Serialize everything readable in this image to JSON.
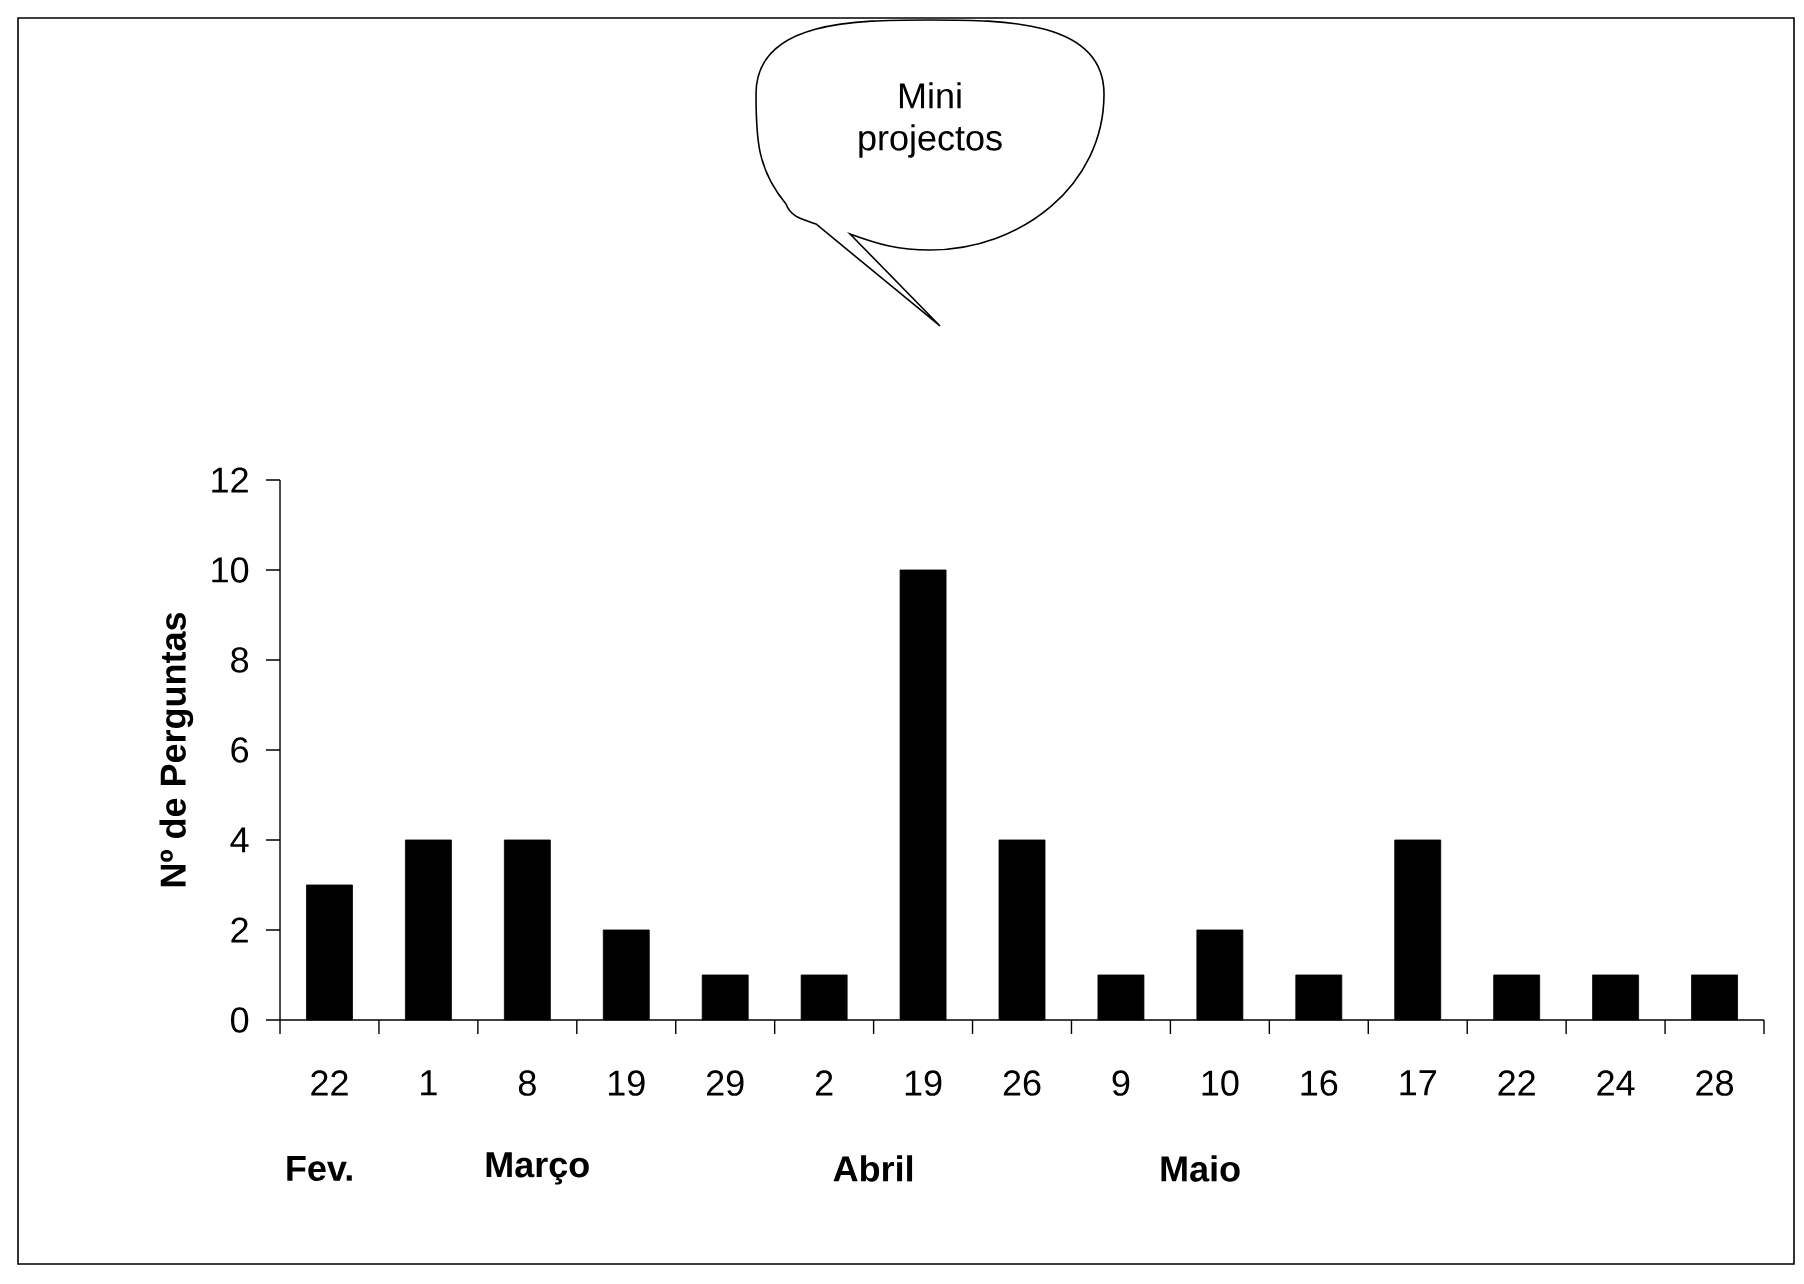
{
  "chart_data": {
    "type": "bar",
    "ylabel": "Nº de Perguntas",
    "categories": [
      "22",
      "1",
      "8",
      "19",
      "29",
      "2",
      "19",
      "26",
      "9",
      "10",
      "16",
      "17",
      "22",
      "24",
      "28"
    ],
    "values": [
      3,
      4,
      4,
      2,
      1,
      1,
      10,
      4,
      1,
      2,
      1,
      4,
      1,
      1,
      1
    ],
    "color": "#000000",
    "ylim": [
      0,
      12
    ],
    "yticks": [
      0,
      2,
      4,
      6,
      8,
      10,
      12
    ],
    "grid": false,
    "annotations": [
      "Fev.",
      "Março",
      "Abril",
      "Maio",
      "Mini projectos"
    ]
  }
}
